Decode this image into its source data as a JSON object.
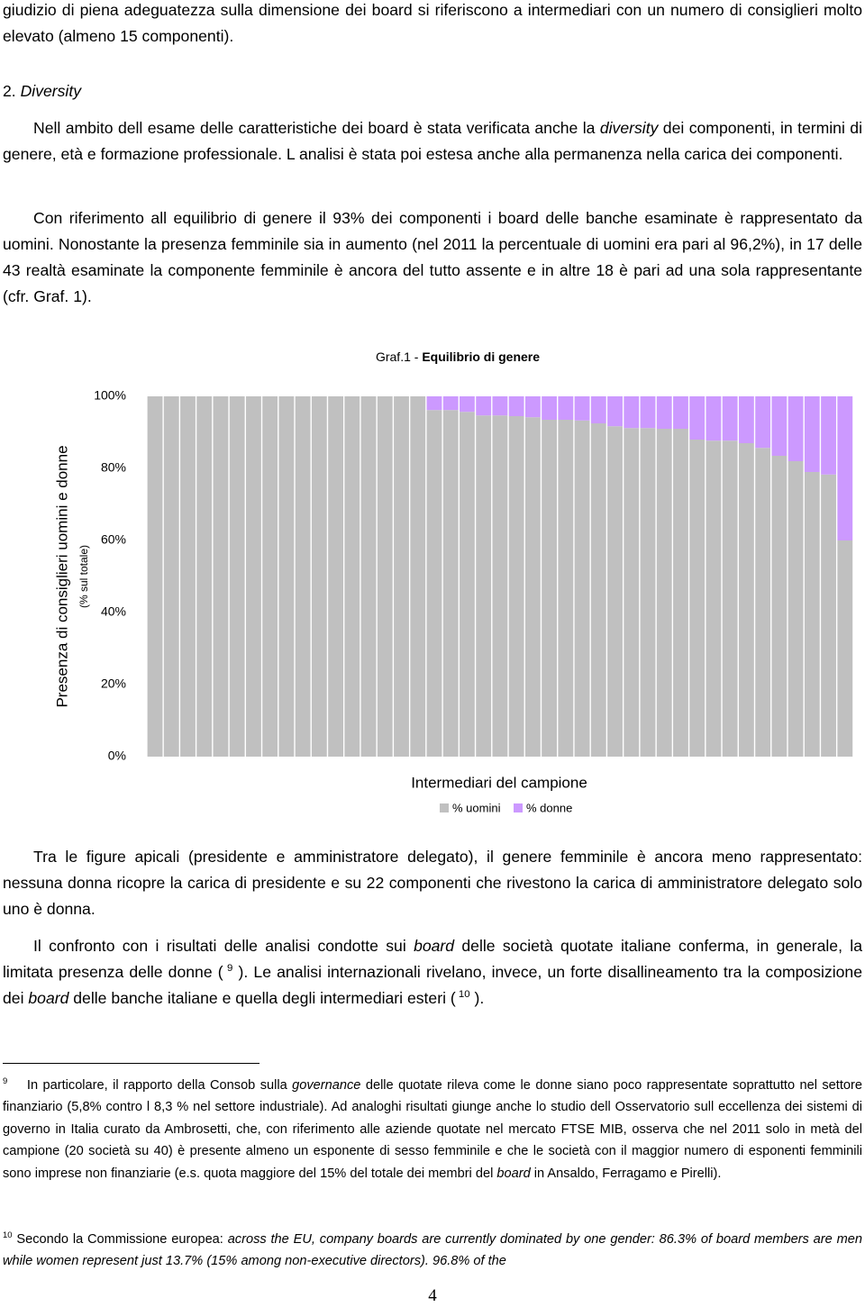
{
  "paragraphs": [
    [
      "giudizio di piena adeguatezza sulla dimensione dei board si riferiscono a intermediari con un numero di consiglieri molto elevato (almeno 15 componenti)."
    ],
    [
      "Nell ambito dell esame delle caratteristiche dei board è stata verificata anche la ",
      "diversity",
      " dei componenti, in termini di genere, età e formazione professionale. L analisi è stata poi estesa anche alla permanenza nella carica dei componenti."
    ],
    [
      "Con riferimento all equilibrio di genere il 93% dei componenti i board delle banche esaminate è rappresentato da uomini. Nonostante la presenza femminile sia in aumento (nel 2011 la percentuale di uomini era pari al 96,2%), in 17 delle 43 realtà esaminate la componente femminile è ancora del tutto assente e in altre 18 è pari ad una sola rappresentante (cfr. Graf. 1)."
    ],
    [
      "Tra le figure apicali (presidente e amministratore delegato), il genere femminile è ancora meno rappresentato: nessuna donna ricopre la carica di presidente e su 22 componenti che rivestono la carica di amministratore delegato solo uno è donna."
    ],
    [
      "Il confronto con i risultati delle analisi condotte sui ",
      "board",
      " delle società quotate italiane conferma, in generale, la limitata presenza delle donne (",
      " 9",
      " ). Le analisi internazionali rivelano, invece, un forte disallineamento tra la composizione dei ",
      "board",
      " delle banche italiane e quella degli intermediari esteri (",
      " 10",
      " )."
    ]
  ],
  "section": {
    "number": "2.",
    "title": "Diversity"
  },
  "chart_data": {
    "type": "bar",
    "stacked": true,
    "title": [
      "Graf.1 - ",
      "Equilibrio di genere"
    ],
    "ylabel": "Presenza di consiglieri uomini e donne",
    "ylabel2": "(% sul totale)",
    "xlabel": "Intermediari del campione",
    "categories": [
      null,
      null,
      null,
      null,
      null,
      null,
      null,
      null,
      null,
      null,
      null,
      null,
      null,
      null,
      null,
      null,
      null,
      null,
      null,
      null,
      null,
      null,
      null,
      null,
      null,
      null,
      null,
      null,
      null,
      null,
      null,
      null,
      null,
      null,
      null,
      null,
      null,
      null,
      null,
      null,
      null,
      null,
      null
    ],
    "series": [
      {
        "name": "% uomini",
        "color": "#c0c0c0",
        "values": [
          100,
          100,
          100,
          100,
          100,
          100,
          100,
          100,
          100,
          100,
          100,
          100,
          100,
          100,
          100,
          100,
          100,
          96.2,
          96.2,
          95.7,
          94.7,
          94.7,
          94.5,
          94.2,
          93.5,
          93.5,
          93.3,
          92.5,
          91.7,
          91.2,
          91.2,
          91,
          91,
          88,
          87.7,
          87.7,
          87,
          85.7,
          83.5,
          82,
          79,
          78.3,
          60
        ]
      },
      {
        "name": "% donne",
        "color": "#cc99ff",
        "values": [
          0,
          0,
          0,
          0,
          0,
          0,
          0,
          0,
          0,
          0,
          0,
          0,
          0,
          0,
          0,
          0,
          0,
          3.8,
          3.8,
          4.3,
          5.3,
          5.3,
          5.5,
          5.8,
          6.5,
          6.5,
          6.7,
          7.5,
          8.3,
          8.8,
          8.8,
          9,
          9,
          12,
          12.3,
          12.3,
          13,
          14.3,
          16.5,
          18,
          21,
          21.7,
          40
        ]
      }
    ],
    "ylim": [
      0,
      100
    ],
    "yticks": [
      {
        "value": 0,
        "label": "0%"
      },
      {
        "value": 20,
        "label": "20%"
      },
      {
        "value": 40,
        "label": "40%"
      },
      {
        "value": 60,
        "label": "60%"
      },
      {
        "value": 80,
        "label": "80%"
      },
      {
        "value": 100,
        "label": "100%"
      }
    ],
    "grid": false,
    "legend": "bottom"
  },
  "footnotes": [
    {
      "number": "9",
      "runs": [
        "In particolare, il rapporto della Consob sulla ",
        "governance",
        " delle quotate rileva come le donne siano poco rappresentate soprattutto nel settore finanziario (5,8% contro l 8,3 % nel settore industriale). Ad analoghi risultati giunge anche lo studio dell Osservatorio sull eccellenza dei sistemi di governo in Italia curato da Ambrosetti, che, con riferimento alle aziende quotate nel mercato FTSE MIB, osserva che nel 2011 solo in metà del campione (20 società su 40) è presente almeno un esponente di sesso femminile e che le società con il maggior numero di esponenti femminili sono imprese non finanziarie (e.s. quota maggiore del 15% del totale dei membri del ",
        "board",
        " in Ansaldo, Ferragamo e Pirelli)."
      ]
    },
    {
      "number": "10",
      "runs": [
        "Secondo la Commissione europea: ",
        "across the EU, company boards are currently dominated by one gender: 86.3% of board members are men while women represent just 13.7% (15% among non-executive directors). 96.8% of the"
      ]
    }
  ],
  "page_number": "4"
}
